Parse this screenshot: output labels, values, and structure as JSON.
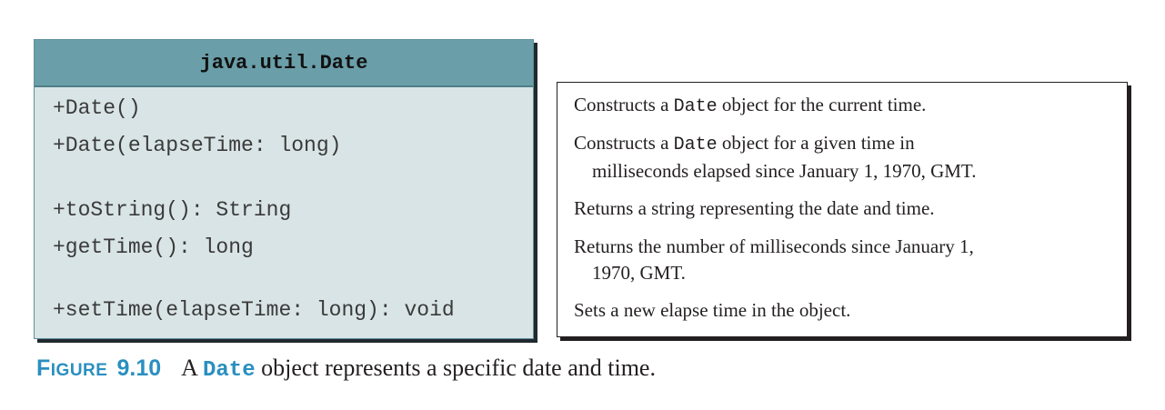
{
  "class_diagram": {
    "class_name": "java.util.Date",
    "members": [
      "+Date()",
      "+Date(elapseTime: long)",
      "+toString(): String",
      "+getTime(): long",
      "+setTime(elapseTime: long): void"
    ]
  },
  "descriptions": [
    {
      "before": "Constructs a ",
      "code": "Date",
      "after": " object for the current time.",
      "cont": ""
    },
    {
      "before": "Constructs a ",
      "code": "Date",
      "after": " object for a given time in",
      "cont": "milliseconds elapsed since January 1, 1970, GMT."
    },
    {
      "before": "Returns a string representing the date and time.",
      "code": "",
      "after": "",
      "cont": ""
    },
    {
      "before": "Returns the number of milliseconds since January 1,",
      "code": "",
      "after": "",
      "cont": "1970, GMT."
    },
    {
      "before": "Sets a new elapse time in the object.",
      "code": "",
      "after": "",
      "cont": ""
    }
  ],
  "caption": {
    "label_first": "F",
    "label_rest": "IGURE",
    "number": "9.10",
    "prefix": "A ",
    "code": "Date",
    "rest": " object represents a specific date and time."
  }
}
